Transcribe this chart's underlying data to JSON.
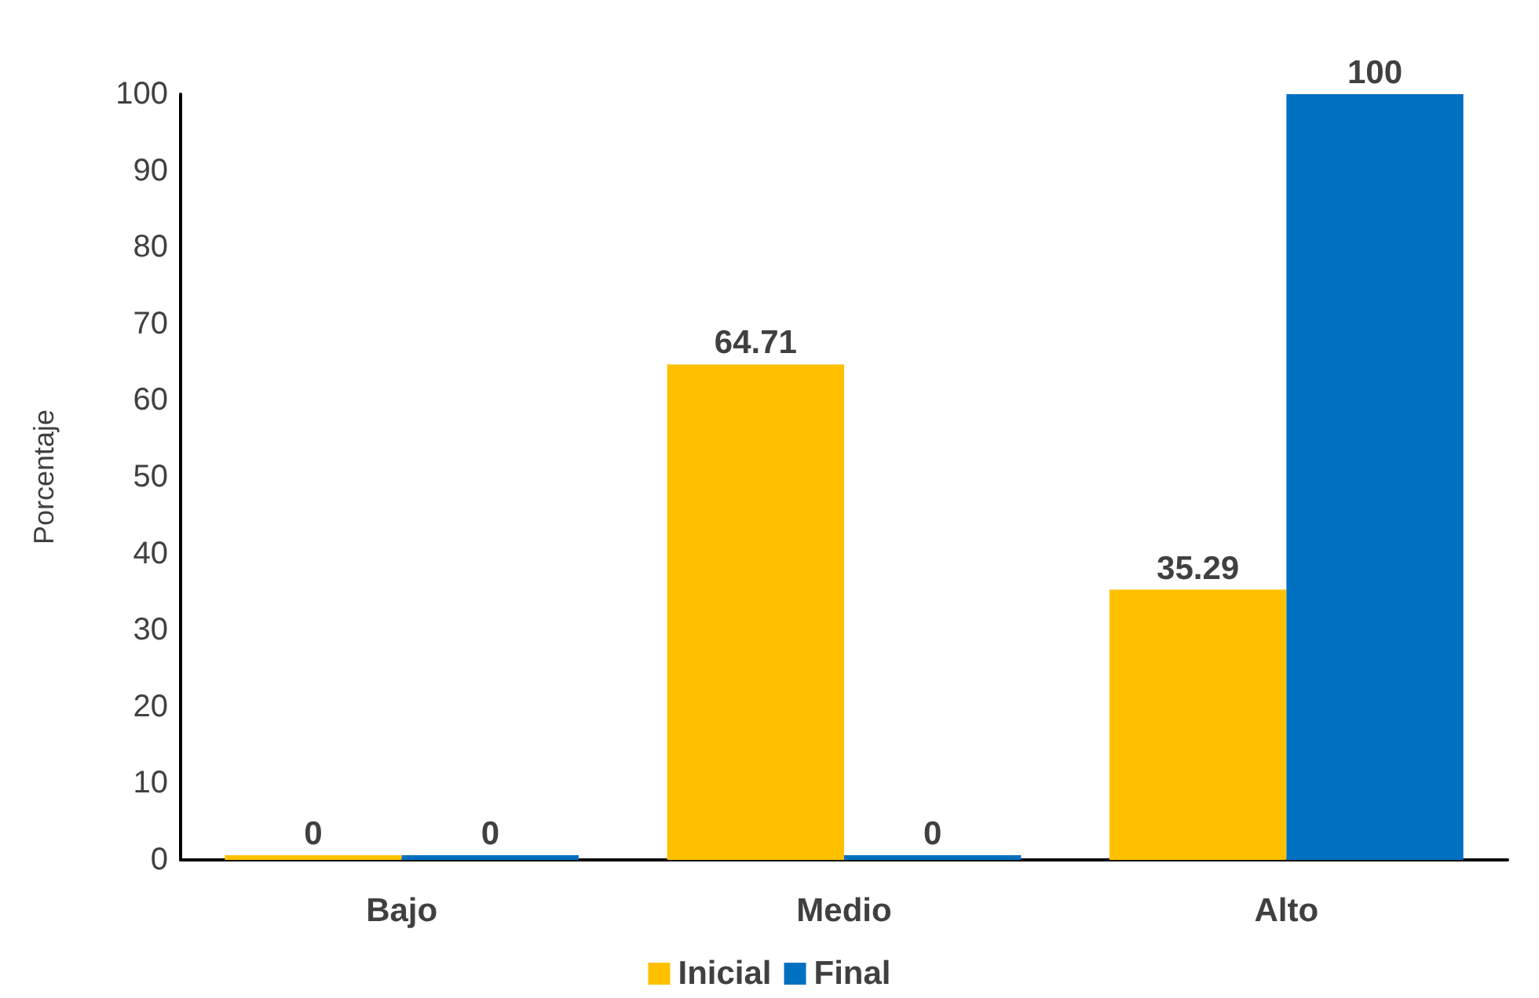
{
  "chart_data": {
    "type": "bar",
    "ylabel": "Porcentaje",
    "categories": [
      "Bajo",
      "Medio",
      "Alto"
    ],
    "series": [
      {
        "name": "Inicial",
        "color": "#ffc000",
        "values": [
          0,
          64.71,
          35.29
        ]
      },
      {
        "name": "Final",
        "color": "#0070c0",
        "values": [
          0,
          0,
          100
        ]
      }
    ],
    "ylim": [
      0,
      100
    ],
    "yticks": [
      0,
      10,
      20,
      30,
      40,
      50,
      60,
      70,
      80,
      90,
      100
    ],
    "grid": false,
    "legend": "bottom",
    "data_labels": true
  }
}
